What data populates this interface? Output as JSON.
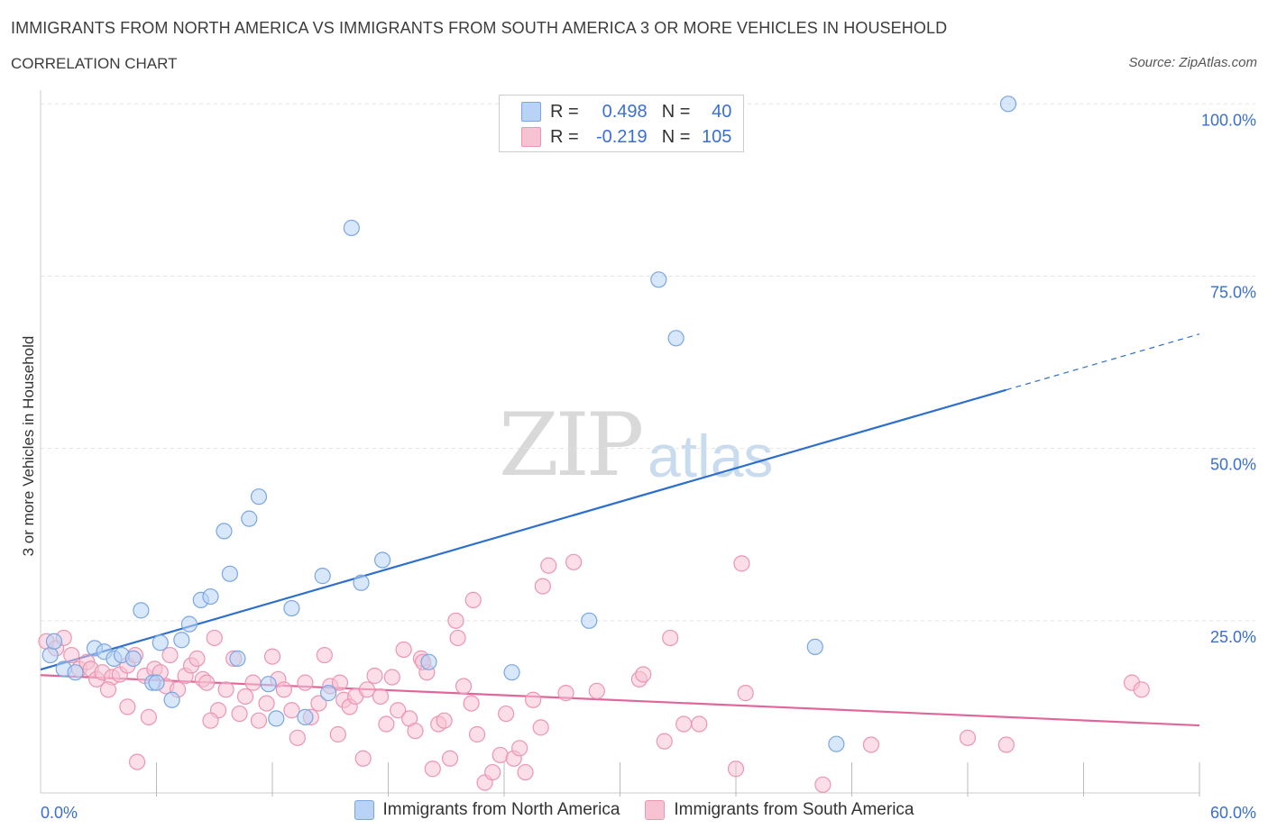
{
  "header": {
    "title": "IMMIGRANTS FROM NORTH AMERICA VS IMMIGRANTS FROM SOUTH AMERICA 3 OR MORE VEHICLES IN HOUSEHOLD",
    "subtitle": "CORRELATION CHART",
    "source": "Source: ZipAtlas.com"
  },
  "watermark": {
    "zip": "ZIP",
    "atlas": "atlas"
  },
  "legend": {
    "r_label": "R =",
    "n_label": "N =",
    "north": {
      "r": "0.498",
      "n": "40"
    },
    "south": {
      "r": "-0.219",
      "n": "105"
    }
  },
  "colors": {
    "north_fill": "#b8d3f5",
    "north_stroke": "#7aa6e3",
    "north_line": "#2e6fcc",
    "south_fill": "#f7c3d3",
    "south_stroke": "#ec95b2",
    "south_line": "#e0679a",
    "grid": "#e3e3e3",
    "tick_text": "#3a6fd1"
  },
  "chart_data": {
    "type": "scatter",
    "title": "IMMIGRANTS FROM NORTH AMERICA VS IMMIGRANTS FROM SOUTH AMERICA 3 OR MORE VEHICLES IN HOUSEHOLD",
    "xlabel": "",
    "ylabel": "3 or more Vehicles in Household",
    "xlim": [
      0,
      60
    ],
    "ylim": [
      0,
      102
    ],
    "x_tick_labels": {
      "min": "0.0%",
      "max": "60.0%"
    },
    "y_ticks": [
      {
        "value": 25,
        "label": "25.0%"
      },
      {
        "value": 50,
        "label": "50.0%"
      },
      {
        "value": 75,
        "label": "75.0%"
      },
      {
        "value": 100,
        "label": "100.0%"
      }
    ],
    "x_minor_ticks": [
      6,
      12,
      18,
      24,
      30,
      36,
      42,
      48,
      54,
      60
    ],
    "grid": true,
    "legend_position": "top-center",
    "series": [
      {
        "name": "Immigrants from North America",
        "color": "#7aa6e3",
        "trend": {
          "x0": 0,
          "y0": 17.9,
          "x1": 50,
          "y1": 58.5,
          "dash_to_x": 60,
          "dash_to_y": 66.6
        },
        "points": [
          [
            0.5,
            20
          ],
          [
            0.7,
            22
          ],
          [
            1.2,
            18
          ],
          [
            1.8,
            17.5
          ],
          [
            2.8,
            21
          ],
          [
            3.3,
            20.5
          ],
          [
            3.8,
            19.5
          ],
          [
            4.2,
            20
          ],
          [
            4.8,
            19.5
          ],
          [
            5.2,
            26.5
          ],
          [
            5.8,
            16
          ],
          [
            6.2,
            21.8
          ],
          [
            6.8,
            13.5
          ],
          [
            7.3,
            22.2
          ],
          [
            7.7,
            24.5
          ],
          [
            8.3,
            28
          ],
          [
            8.8,
            28.5
          ],
          [
            9.5,
            38
          ],
          [
            9.8,
            31.8
          ],
          [
            10.2,
            19.5
          ],
          [
            10.8,
            39.8
          ],
          [
            11.3,
            43
          ],
          [
            11.8,
            15.8
          ],
          [
            12.2,
            10.8
          ],
          [
            13.0,
            26.8
          ],
          [
            13.7,
            11
          ],
          [
            14.6,
            31.5
          ],
          [
            14.9,
            14.5
          ],
          [
            16.6,
            30.5
          ],
          [
            17.7,
            33.8
          ],
          [
            20.1,
            19
          ],
          [
            24.4,
            17.5
          ],
          [
            28.4,
            25
          ],
          [
            32.0,
            74.5
          ],
          [
            32.9,
            66
          ],
          [
            40.1,
            21.2
          ],
          [
            41.2,
            7.1
          ],
          [
            50.1,
            100
          ],
          [
            16.1,
            82
          ],
          [
            6.0,
            16
          ]
        ]
      },
      {
        "name": "Immigrants from South America",
        "color": "#ec95b2",
        "trend": {
          "x0": 0,
          "y0": 17.1,
          "x1": 60,
          "y1": 9.8
        },
        "points": [
          [
            0.3,
            22
          ],
          [
            0.8,
            21
          ],
          [
            1.2,
            22.5
          ],
          [
            1.6,
            20
          ],
          [
            2.0,
            18
          ],
          [
            2.4,
            19
          ],
          [
            2.6,
            18
          ],
          [
            2.9,
            16.5
          ],
          [
            3.2,
            17.5
          ],
          [
            3.7,
            16.8
          ],
          [
            4.1,
            17.2
          ],
          [
            4.5,
            18.5
          ],
          [
            4.9,
            20
          ],
          [
            5.0,
            4.5
          ],
          [
            5.4,
            17
          ],
          [
            5.6,
            11
          ],
          [
            5.9,
            18
          ],
          [
            6.2,
            17.5
          ],
          [
            6.5,
            15.5
          ],
          [
            6.7,
            20
          ],
          [
            7.1,
            15
          ],
          [
            7.5,
            17
          ],
          [
            7.8,
            18.5
          ],
          [
            8.1,
            19.5
          ],
          [
            8.4,
            16.5
          ],
          [
            8.6,
            16
          ],
          [
            9.0,
            22.5
          ],
          [
            9.2,
            12
          ],
          [
            9.6,
            15
          ],
          [
            10.0,
            19.5
          ],
          [
            10.3,
            11.5
          ],
          [
            10.6,
            14
          ],
          [
            11.0,
            16
          ],
          [
            11.3,
            10.5
          ],
          [
            11.7,
            13
          ],
          [
            12.0,
            19.8
          ],
          [
            12.3,
            16.5
          ],
          [
            12.6,
            15
          ],
          [
            13.0,
            12
          ],
          [
            13.3,
            8
          ],
          [
            13.7,
            16
          ],
          [
            14.0,
            11
          ],
          [
            14.4,
            13
          ],
          [
            14.7,
            20
          ],
          [
            15.0,
            15.5
          ],
          [
            15.4,
            8.5
          ],
          [
            15.7,
            13.5
          ],
          [
            16.0,
            12.5
          ],
          [
            16.3,
            14
          ],
          [
            16.7,
            5
          ],
          [
            16.9,
            15
          ],
          [
            17.3,
            17
          ],
          [
            17.6,
            14
          ],
          [
            17.9,
            10
          ],
          [
            18.2,
            16.8
          ],
          [
            18.5,
            12
          ],
          [
            18.8,
            20.8
          ],
          [
            19.1,
            10.8
          ],
          [
            19.4,
            9
          ],
          [
            19.7,
            19.5
          ],
          [
            20.0,
            17.5
          ],
          [
            20.3,
            3.5
          ],
          [
            20.6,
            10
          ],
          [
            20.9,
            10.5
          ],
          [
            21.2,
            5
          ],
          [
            21.6,
            22.5
          ],
          [
            21.9,
            15.5
          ],
          [
            22.3,
            13
          ],
          [
            22.6,
            8.5
          ],
          [
            23.0,
            1.5
          ],
          [
            23.4,
            3
          ],
          [
            23.8,
            5.5
          ],
          [
            24.1,
            11.5
          ],
          [
            24.5,
            5
          ],
          [
            24.8,
            6.5
          ],
          [
            25.1,
            3
          ],
          [
            25.5,
            13.5
          ],
          [
            25.9,
            9.5
          ],
          [
            26.3,
            33
          ],
          [
            27.6,
            33.5
          ],
          [
            27.2,
            14.5
          ],
          [
            21.5,
            25
          ],
          [
            22.4,
            28
          ],
          [
            26.0,
            30
          ],
          [
            31.0,
            16.5
          ],
          [
            31.2,
            17.2
          ],
          [
            32.3,
            7.5
          ],
          [
            32.6,
            22.5
          ],
          [
            33.3,
            10
          ],
          [
            34.1,
            10
          ],
          [
            36.0,
            3.5
          ],
          [
            36.3,
            33.3
          ],
          [
            36.5,
            14.5
          ],
          [
            40.5,
            1.2
          ],
          [
            43.0,
            7
          ],
          [
            48.0,
            8
          ],
          [
            50.0,
            7
          ],
          [
            56.5,
            16
          ],
          [
            57.0,
            15
          ],
          [
            4.5,
            12.5
          ],
          [
            8.8,
            10.5
          ],
          [
            19.8,
            19.0
          ],
          [
            15.5,
            16.0
          ],
          [
            3.5,
            15.0
          ],
          [
            28.8,
            14.8
          ]
        ]
      }
    ]
  },
  "bottom_legend": {
    "north_label": "Immigrants from North America",
    "south_label": "Immigrants from South America"
  }
}
